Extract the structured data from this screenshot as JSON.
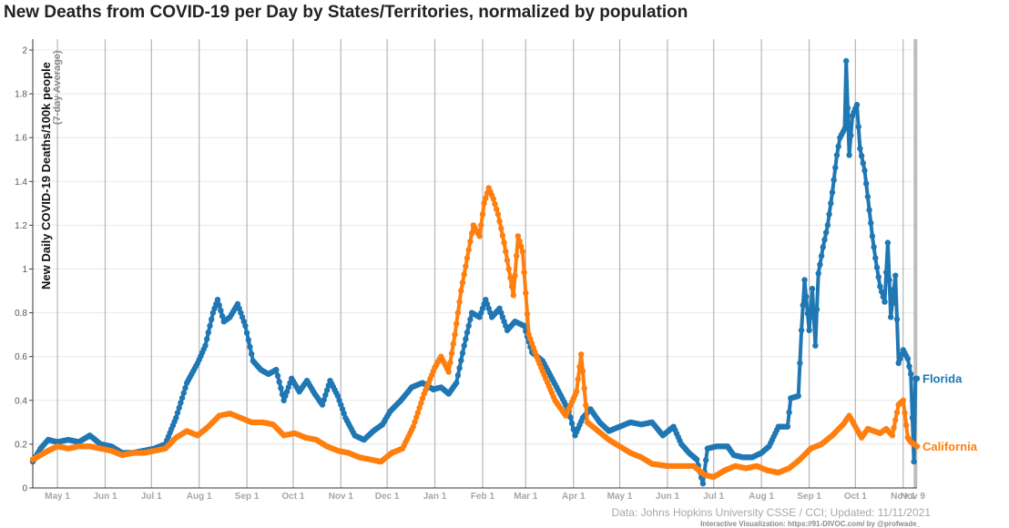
{
  "title": "New Deaths from COVID-19 per Day by States/Territories, normalized by population",
  "source": "Data: Johns Hopkins University CSSE / CCI; Updated: 11/11/2021",
  "credit": "Interactive Visualization: https://91-DIVOC.com/ by @profwade_",
  "chart_data": {
    "type": "line",
    "title": "New Deaths from COVID-19 per Day by States/Territories, normalized by population",
    "ylabel": "New Daily COVID-19 Deaths/100k people",
    "ylabel_sub": "(7-day Average)",
    "ylim": [
      0,
      2
    ],
    "yticks": [
      "0",
      "0.2",
      "0.4",
      "0.6",
      "0.8",
      "1",
      "1.2",
      "1.4",
      "1.6",
      "1.8",
      "2"
    ],
    "x_start": "2020-04-15",
    "x_end": "2021-11-10",
    "xticks": [
      {
        "label": "May 1",
        "date": "2020-05-01"
      },
      {
        "label": "Jun 1",
        "date": "2020-06-01"
      },
      {
        "label": "Jul 1",
        "date": "2020-07-01"
      },
      {
        "label": "Aug 1",
        "date": "2020-08-01"
      },
      {
        "label": "Sep 1",
        "date": "2020-09-01"
      },
      {
        "label": "Oct 1",
        "date": "2020-10-01"
      },
      {
        "label": "Nov 1",
        "date": "2020-11-01"
      },
      {
        "label": "Dec 1",
        "date": "2020-12-01"
      },
      {
        "label": "Jan 1",
        "date": "2021-01-01"
      },
      {
        "label": "Feb 1",
        "date": "2021-02-01"
      },
      {
        "label": "Mar 1",
        "date": "2021-03-01"
      },
      {
        "label": "Apr 1",
        "date": "2021-04-01"
      },
      {
        "label": "May 1",
        "date": "2021-05-01"
      },
      {
        "label": "Jun 1",
        "date": "2021-06-01"
      },
      {
        "label": "Jul 1",
        "date": "2021-07-01"
      },
      {
        "label": "Aug 1",
        "date": "2021-08-01"
      },
      {
        "label": "Sep 1",
        "date": "2021-09-01"
      },
      {
        "label": "Oct 1",
        "date": "2021-10-01"
      },
      {
        "label": "Nov 1",
        "date": "2021-11-01"
      },
      {
        "label": "Nov 9",
        "date": "2021-11-09"
      }
    ],
    "grid": true,
    "legend": "labels at line ends (right)",
    "series": [
      {
        "name": "Florida",
        "color": "#1f77b4",
        "points": [
          [
            "2020-04-15",
            0.12
          ],
          [
            "2020-04-20",
            0.18
          ],
          [
            "2020-04-25",
            0.22
          ],
          [
            "2020-05-01",
            0.21
          ],
          [
            "2020-05-08",
            0.22
          ],
          [
            "2020-05-15",
            0.21
          ],
          [
            "2020-05-22",
            0.24
          ],
          [
            "2020-05-29",
            0.2
          ],
          [
            "2020-06-05",
            0.19
          ],
          [
            "2020-06-12",
            0.16
          ],
          [
            "2020-06-19",
            0.16
          ],
          [
            "2020-06-26",
            0.17
          ],
          [
            "2020-07-03",
            0.18
          ],
          [
            "2020-07-10",
            0.2
          ],
          [
            "2020-07-17",
            0.32
          ],
          [
            "2020-07-24",
            0.48
          ],
          [
            "2020-07-31",
            0.57
          ],
          [
            "2020-08-05",
            0.65
          ],
          [
            "2020-08-10",
            0.8
          ],
          [
            "2020-08-13",
            0.86
          ],
          [
            "2020-08-17",
            0.76
          ],
          [
            "2020-08-21",
            0.78
          ],
          [
            "2020-08-26",
            0.84
          ],
          [
            "2020-08-31",
            0.74
          ],
          [
            "2020-09-05",
            0.58
          ],
          [
            "2020-09-10",
            0.54
          ],
          [
            "2020-09-15",
            0.52
          ],
          [
            "2020-09-20",
            0.54
          ],
          [
            "2020-09-25",
            0.4
          ],
          [
            "2020-09-30",
            0.5
          ],
          [
            "2020-10-05",
            0.44
          ],
          [
            "2020-10-10",
            0.49
          ],
          [
            "2020-10-15",
            0.43
          ],
          [
            "2020-10-20",
            0.38
          ],
          [
            "2020-10-25",
            0.49
          ],
          [
            "2020-10-30",
            0.42
          ],
          [
            "2020-11-04",
            0.32
          ],
          [
            "2020-11-10",
            0.24
          ],
          [
            "2020-11-16",
            0.22
          ],
          [
            "2020-11-22",
            0.26
          ],
          [
            "2020-11-28",
            0.29
          ],
          [
            "2020-12-03",
            0.35
          ],
          [
            "2020-12-10",
            0.4
          ],
          [
            "2020-12-17",
            0.46
          ],
          [
            "2020-12-24",
            0.48
          ],
          [
            "2020-12-31",
            0.45
          ],
          [
            "2021-01-05",
            0.46
          ],
          [
            "2021-01-10",
            0.43
          ],
          [
            "2021-01-15",
            0.48
          ],
          [
            "2021-01-20",
            0.65
          ],
          [
            "2021-01-25",
            0.8
          ],
          [
            "2021-01-30",
            0.78
          ],
          [
            "2021-02-03",
            0.86
          ],
          [
            "2021-02-07",
            0.78
          ],
          [
            "2021-02-12",
            0.82
          ],
          [
            "2021-02-17",
            0.72
          ],
          [
            "2021-02-22",
            0.76
          ],
          [
            "2021-02-28",
            0.74
          ],
          [
            "2021-03-05",
            0.62
          ],
          [
            "2021-03-12",
            0.58
          ],
          [
            "2021-03-18",
            0.5
          ],
          [
            "2021-03-24",
            0.42
          ],
          [
            "2021-03-29",
            0.35
          ],
          [
            "2021-04-02",
            0.24
          ],
          [
            "2021-04-07",
            0.32
          ],
          [
            "2021-04-12",
            0.36
          ],
          [
            "2021-04-18",
            0.3
          ],
          [
            "2021-04-24",
            0.26
          ],
          [
            "2021-05-01",
            0.28
          ],
          [
            "2021-05-08",
            0.3
          ],
          [
            "2021-05-15",
            0.29
          ],
          [
            "2021-05-22",
            0.3
          ],
          [
            "2021-05-29",
            0.24
          ],
          [
            "2021-06-05",
            0.28
          ],
          [
            "2021-06-10",
            0.2
          ],
          [
            "2021-06-15",
            0.16
          ],
          [
            "2021-06-20",
            0.13
          ],
          [
            "2021-06-24",
            0.02
          ],
          [
            "2021-06-27",
            0.18
          ],
          [
            "2021-07-03",
            0.19
          ],
          [
            "2021-07-10",
            0.19
          ],
          [
            "2021-07-14",
            0.15
          ],
          [
            "2021-07-20",
            0.14
          ],
          [
            "2021-07-26",
            0.14
          ],
          [
            "2021-08-01",
            0.16
          ],
          [
            "2021-08-06",
            0.19
          ],
          [
            "2021-08-12",
            0.28
          ],
          [
            "2021-08-18",
            0.28
          ],
          [
            "2021-08-20",
            0.41
          ],
          [
            "2021-08-25",
            0.42
          ],
          [
            "2021-08-27",
            0.72
          ],
          [
            "2021-08-29",
            0.95
          ],
          [
            "2021-09-01",
            0.72
          ],
          [
            "2021-09-03",
            0.91
          ],
          [
            "2021-09-05",
            0.65
          ],
          [
            "2021-09-07",
            0.98
          ],
          [
            "2021-09-10",
            1.1
          ],
          [
            "2021-09-13",
            1.2
          ],
          [
            "2021-09-16",
            1.35
          ],
          [
            "2021-09-19",
            1.52
          ],
          [
            "2021-09-21",
            1.6
          ],
          [
            "2021-09-24",
            1.64
          ],
          [
            "2021-09-25",
            1.95
          ],
          [
            "2021-09-27",
            1.52
          ],
          [
            "2021-09-29",
            1.7
          ],
          [
            "2021-10-02",
            1.75
          ],
          [
            "2021-10-04",
            1.55
          ],
          [
            "2021-10-07",
            1.45
          ],
          [
            "2021-10-10",
            1.27
          ],
          [
            "2021-10-12",
            1.15
          ],
          [
            "2021-10-14",
            1.05
          ],
          [
            "2021-10-17",
            0.92
          ],
          [
            "2021-10-20",
            0.85
          ],
          [
            "2021-10-22",
            1.12
          ],
          [
            "2021-10-24",
            0.78
          ],
          [
            "2021-10-27",
            0.97
          ],
          [
            "2021-10-29",
            0.57
          ],
          [
            "2021-11-01",
            0.63
          ],
          [
            "2021-11-04",
            0.59
          ],
          [
            "2021-11-06",
            0.52
          ],
          [
            "2021-11-08",
            0.12
          ],
          [
            "2021-11-09",
            0.5
          ],
          [
            "2021-11-10",
            0.5
          ]
        ]
      },
      {
        "name": "California",
        "color": "#ff7f0e",
        "points": [
          [
            "2020-04-15",
            0.13
          ],
          [
            "2020-04-20",
            0.15
          ],
          [
            "2020-04-25",
            0.17
          ],
          [
            "2020-05-01",
            0.19
          ],
          [
            "2020-05-08",
            0.18
          ],
          [
            "2020-05-15",
            0.19
          ],
          [
            "2020-05-22",
            0.19
          ],
          [
            "2020-05-29",
            0.18
          ],
          [
            "2020-06-05",
            0.17
          ],
          [
            "2020-06-12",
            0.15
          ],
          [
            "2020-06-19",
            0.16
          ],
          [
            "2020-06-26",
            0.16
          ],
          [
            "2020-07-03",
            0.17
          ],
          [
            "2020-07-10",
            0.18
          ],
          [
            "2020-07-17",
            0.23
          ],
          [
            "2020-07-24",
            0.26
          ],
          [
            "2020-07-31",
            0.24
          ],
          [
            "2020-08-07",
            0.28
          ],
          [
            "2020-08-14",
            0.33
          ],
          [
            "2020-08-21",
            0.34
          ],
          [
            "2020-08-28",
            0.32
          ],
          [
            "2020-09-04",
            0.3
          ],
          [
            "2020-09-11",
            0.3
          ],
          [
            "2020-09-18",
            0.29
          ],
          [
            "2020-09-25",
            0.24
          ],
          [
            "2020-10-02",
            0.25
          ],
          [
            "2020-10-09",
            0.23
          ],
          [
            "2020-10-16",
            0.22
          ],
          [
            "2020-10-23",
            0.19
          ],
          [
            "2020-10-30",
            0.17
          ],
          [
            "2020-11-06",
            0.16
          ],
          [
            "2020-11-13",
            0.14
          ],
          [
            "2020-11-20",
            0.13
          ],
          [
            "2020-11-27",
            0.12
          ],
          [
            "2020-12-04",
            0.16
          ],
          [
            "2020-12-11",
            0.18
          ],
          [
            "2020-12-18",
            0.28
          ],
          [
            "2020-12-25",
            0.43
          ],
          [
            "2021-01-01",
            0.55
          ],
          [
            "2021-01-05",
            0.6
          ],
          [
            "2021-01-10",
            0.53
          ],
          [
            "2021-01-14",
            0.7
          ],
          [
            "2021-01-18",
            0.9
          ],
          [
            "2021-01-22",
            1.05
          ],
          [
            "2021-01-26",
            1.2
          ],
          [
            "2021-01-30",
            1.15
          ],
          [
            "2021-02-02",
            1.3
          ],
          [
            "2021-02-05",
            1.37
          ],
          [
            "2021-02-08",
            1.32
          ],
          [
            "2021-02-11",
            1.25
          ],
          [
            "2021-02-15",
            1.12
          ],
          [
            "2021-02-18",
            1.0
          ],
          [
            "2021-02-21",
            0.88
          ],
          [
            "2021-02-24",
            1.15
          ],
          [
            "2021-02-27",
            1.08
          ],
          [
            "2021-03-03",
            0.7
          ],
          [
            "2021-03-08",
            0.6
          ],
          [
            "2021-03-14",
            0.5
          ],
          [
            "2021-03-20",
            0.4
          ],
          [
            "2021-03-27",
            0.33
          ],
          [
            "2021-04-03",
            0.44
          ],
          [
            "2021-04-06",
            0.61
          ],
          [
            "2021-04-10",
            0.3
          ],
          [
            "2021-04-17",
            0.26
          ],
          [
            "2021-04-24",
            0.22
          ],
          [
            "2021-05-01",
            0.19
          ],
          [
            "2021-05-08",
            0.16
          ],
          [
            "2021-05-15",
            0.14
          ],
          [
            "2021-05-22",
            0.11
          ],
          [
            "2021-06-01",
            0.1
          ],
          [
            "2021-06-10",
            0.1
          ],
          [
            "2021-06-18",
            0.1
          ],
          [
            "2021-06-25",
            0.06
          ],
          [
            "2021-07-01",
            0.05
          ],
          [
            "2021-07-08",
            0.08
          ],
          [
            "2021-07-15",
            0.1
          ],
          [
            "2021-07-22",
            0.09
          ],
          [
            "2021-07-29",
            0.1
          ],
          [
            "2021-08-05",
            0.08
          ],
          [
            "2021-08-12",
            0.07
          ],
          [
            "2021-08-19",
            0.09
          ],
          [
            "2021-08-26",
            0.13
          ],
          [
            "2021-09-02",
            0.18
          ],
          [
            "2021-09-09",
            0.2
          ],
          [
            "2021-09-16",
            0.24
          ],
          [
            "2021-09-23",
            0.29
          ],
          [
            "2021-09-27",
            0.33
          ],
          [
            "2021-10-01",
            0.28
          ],
          [
            "2021-10-05",
            0.23
          ],
          [
            "2021-10-09",
            0.27
          ],
          [
            "2021-10-13",
            0.26
          ],
          [
            "2021-10-17",
            0.25
          ],
          [
            "2021-10-21",
            0.27
          ],
          [
            "2021-10-25",
            0.24
          ],
          [
            "2021-10-29",
            0.38
          ],
          [
            "2021-11-01",
            0.4
          ],
          [
            "2021-11-04",
            0.23
          ],
          [
            "2021-11-06",
            0.21
          ],
          [
            "2021-11-08",
            0.2
          ],
          [
            "2021-11-10",
            0.19
          ]
        ]
      }
    ]
  }
}
